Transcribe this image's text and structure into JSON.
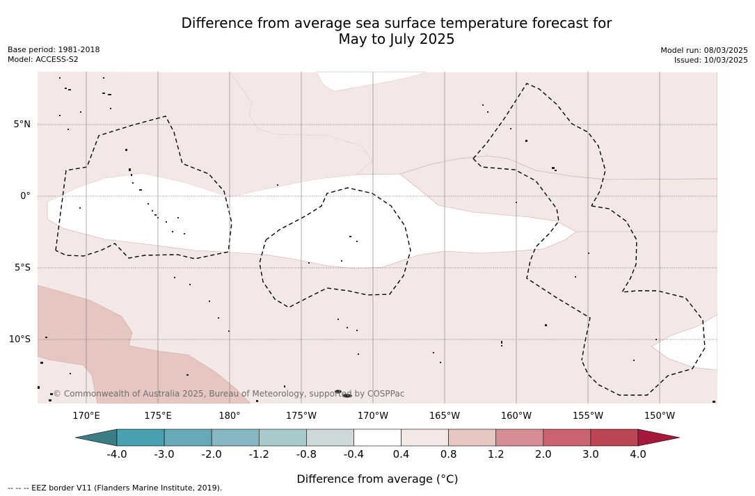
{
  "title": {
    "line1": "Difference from average sea surface temperature forecast for",
    "line2": "May to July 2025"
  },
  "meta_left": {
    "base_period": "Base period: 1981-2018",
    "model": "Model: ACCESS-S2"
  },
  "meta_right": {
    "model_run": "Model run: 08/03/2025",
    "issued": "Issued: 10/03/2025"
  },
  "map": {
    "copyright": "© Commonwealth of Australia 2025, Bureau of Meteorology, supported by COSPPac",
    "lat_labels": [
      "5°N",
      "0°",
      "5°S",
      "10°S"
    ],
    "lon_labels": [
      "170°E",
      "175°E",
      "180°",
      "175°W",
      "170°W",
      "165°W",
      "160°W",
      "155°W",
      "150°W"
    ],
    "region_colors": {
      "neutral": "#ffffff",
      "warm_0.4_0.8": "#f4e8e6",
      "warm_0.8_1.2": "#e6c6c1"
    }
  },
  "colorbar": {
    "ticks": [
      "-4.0",
      "-3.0",
      "-2.0",
      "-1.2",
      "-0.8",
      "-0.4",
      "0.4",
      "0.8",
      "1.2",
      "2.0",
      "3.0",
      "4.0"
    ],
    "colors": [
      "#3d7d86",
      "#48a0b1",
      "#67a9b8",
      "#87b7c2",
      "#a9cacd",
      "#cdd8d8",
      "#ffffff",
      "#f4e8e6",
      "#e6c6c1",
      "#d68e94",
      "#c9636f",
      "#bc4655",
      "#a51a3a"
    ],
    "label": "Difference from average (°C)"
  },
  "footnote": "--  --  -- EEZ border V11 (Flanders Marine Institute, 2019)."
}
